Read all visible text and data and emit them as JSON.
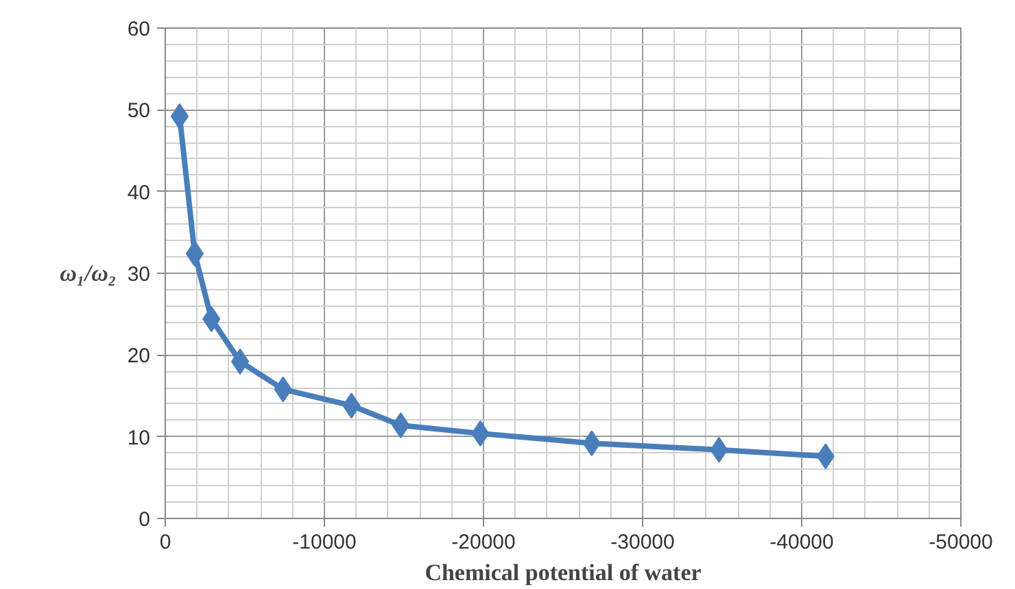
{
  "chart_data": {
    "type": "line",
    "xlabel": "Chemical potential of water",
    "ylabel": "ω₁/ω₂",
    "x": [
      -900,
      -1850,
      -2900,
      -4700,
      -7400,
      -11700,
      -14800,
      -19800,
      -26800,
      -34800,
      -41500
    ],
    "series": [
      {
        "color": "#4a7ebb",
        "values": [
          49.2,
          32.4,
          24.4,
          19.2,
          15.8,
          13.8,
          11.4,
          10.4,
          9.2,
          8.4,
          7.6
        ]
      }
    ],
    "xlim": [
      0,
      -50000
    ],
    "xticks": [
      0,
      -10000,
      -20000,
      -30000,
      -40000,
      -50000
    ],
    "ylim": [
      0,
      60
    ],
    "yticks": [
      0,
      10,
      20,
      30,
      40,
      50,
      60
    ],
    "grid": true,
    "marker": "diamond",
    "line_style": "solid"
  }
}
